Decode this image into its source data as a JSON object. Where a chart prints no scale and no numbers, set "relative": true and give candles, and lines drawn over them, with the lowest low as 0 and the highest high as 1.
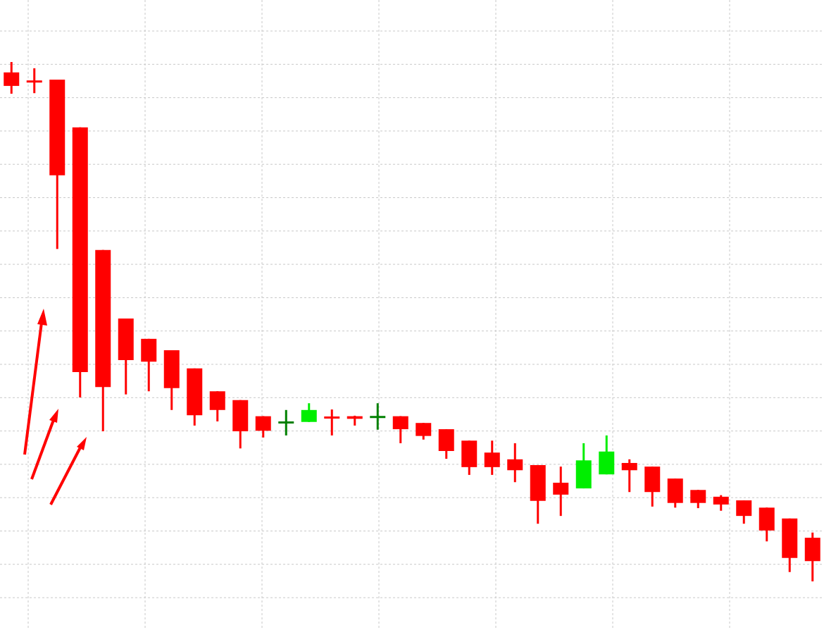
{
  "chart_data": {
    "type": "candlestick",
    "relative": true,
    "grid": true,
    "categories": [
      null,
      null,
      null,
      null,
      null,
      null,
      null,
      null,
      null,
      null,
      null,
      null,
      null,
      null,
      null,
      null,
      null,
      null,
      null,
      null,
      null,
      null,
      null,
      null,
      null,
      null,
      null,
      null,
      null,
      null,
      null,
      null,
      null,
      null,
      null,
      null
    ],
    "ohlc": [
      [
        0.98,
        1.0,
        0.939,
        0.954
      ],
      [
        0.963,
        0.988,
        0.94,
        0.962
      ],
      [
        0.966,
        0.966,
        0.64,
        0.782
      ],
      [
        0.874,
        0.874,
        0.354,
        0.403
      ],
      [
        0.638,
        0.638,
        0.289,
        0.374
      ],
      [
        0.506,
        0.506,
        0.36,
        0.426
      ],
      [
        0.467,
        0.467,
        0.366,
        0.423
      ],
      [
        0.445,
        0.445,
        0.33,
        0.372
      ],
      [
        0.41,
        0.41,
        0.3,
        0.32
      ],
      [
        0.366,
        0.366,
        0.308,
        0.33
      ],
      [
        0.349,
        0.349,
        0.256,
        0.289
      ],
      [
        0.318,
        0.318,
        0.277,
        0.29
      ],
      [
        0.305,
        0.33,
        0.281,
        0.307
      ],
      [
        0.307,
        0.343,
        0.307,
        0.33
      ],
      [
        0.316,
        0.331,
        0.281,
        0.315
      ],
      [
        0.318,
        0.319,
        0.3,
        0.313
      ],
      [
        0.315,
        0.343,
        0.292,
        0.318
      ],
      [
        0.318,
        0.318,
        0.266,
        0.293
      ],
      [
        0.305,
        0.305,
        0.273,
        0.28
      ],
      [
        0.293,
        0.293,
        0.236,
        0.251
      ],
      [
        0.271,
        0.271,
        0.205,
        0.22
      ],
      [
        0.248,
        0.271,
        0.205,
        0.22
      ],
      [
        0.235,
        0.266,
        0.191,
        0.214
      ],
      [
        0.224,
        0.224,
        0.111,
        0.155
      ],
      [
        0.19,
        0.221,
        0.126,
        0.167
      ],
      [
        0.179,
        0.266,
        0.179,
        0.233
      ],
      [
        0.206,
        0.281,
        0.206,
        0.25
      ],
      [
        0.228,
        0.235,
        0.172,
        0.214
      ],
      [
        0.221,
        0.221,
        0.144,
        0.172
      ],
      [
        0.198,
        0.198,
        0.142,
        0.151
      ],
      [
        0.176,
        0.176,
        0.141,
        0.151
      ],
      [
        0.163,
        0.166,
        0.136,
        0.148
      ],
      [
        0.156,
        0.156,
        0.111,
        0.126
      ],
      [
        0.142,
        0.142,
        0.077,
        0.098
      ],
      [
        0.121,
        0.121,
        0.018,
        0.045
      ],
      [
        0.084,
        0.094,
        0.0,
        0.039
      ]
    ],
    "colors": [
      "#ff0000",
      "#ff0000",
      "#ff0000",
      "#ff0000",
      "#ff0000",
      "#ff0000",
      "#ff0000",
      "#ff0000",
      "#ff0000",
      "#ff0000",
      "#ff0000",
      "#ff0000",
      "#008000",
      "#00ee00",
      "#ff0000",
      "#ff0000",
      "#008000",
      "#ff0000",
      "#ff0000",
      "#ff0000",
      "#ff0000",
      "#ff0000",
      "#ff0000",
      "#ff0000",
      "#ff0000",
      "#00ee00",
      "#00ee00",
      "#ff0000",
      "#ff0000",
      "#ff0000",
      "#ff0000",
      "#ff0000",
      "#ff0000",
      "#ff0000",
      "#ff0000",
      "#ff0000"
    ]
  }
}
